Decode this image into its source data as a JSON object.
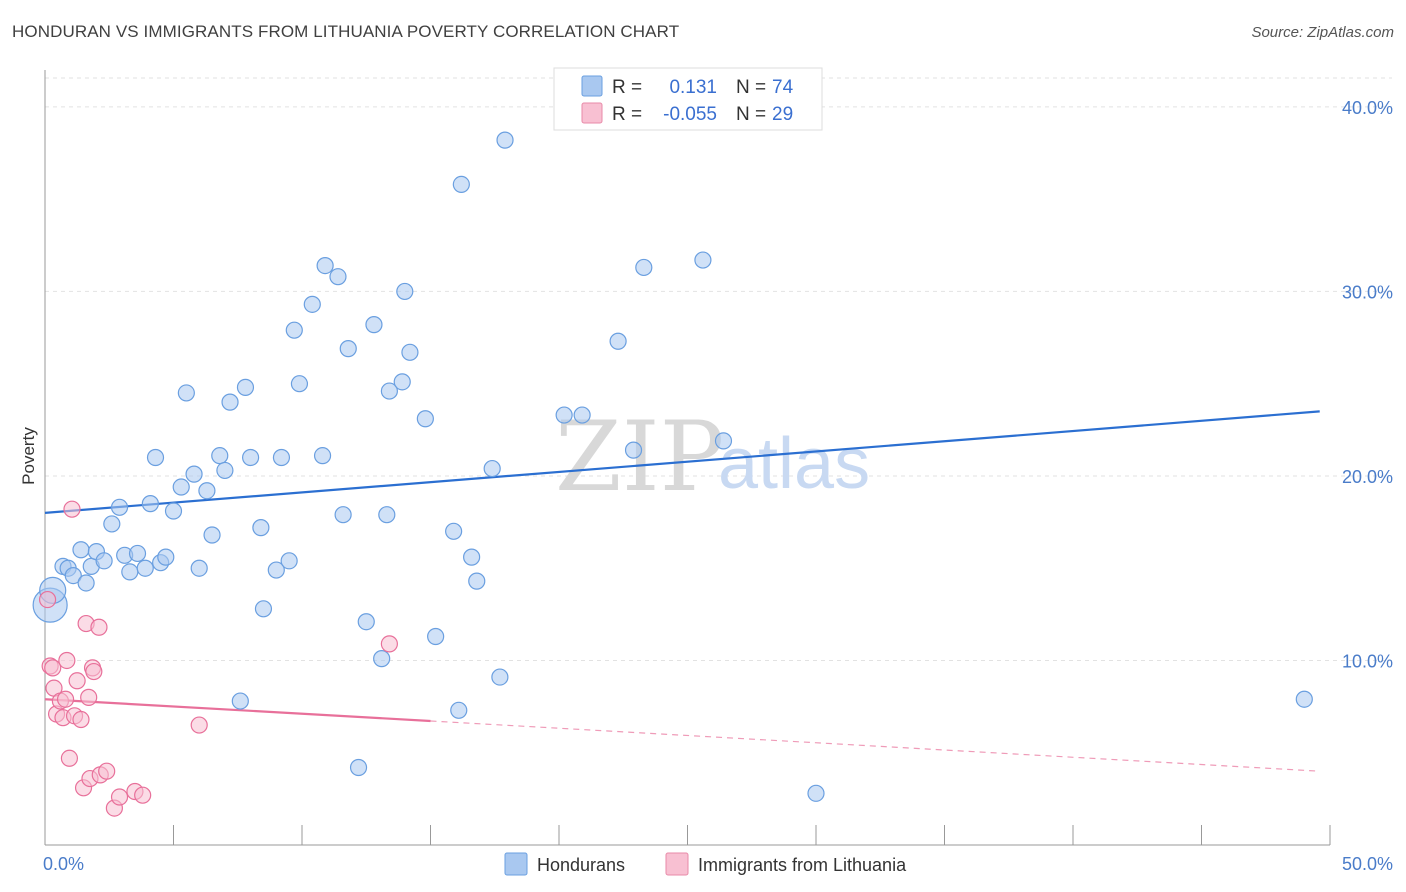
{
  "header": {
    "title": "HONDURAN VS IMMIGRANTS FROM LITHUANIA POVERTY CORRELATION CHART",
    "source": "Source: ZipAtlas.com"
  },
  "watermark": {
    "zip": "ZIP",
    "atlas": "atlas"
  },
  "legend_top": {
    "rows": [
      {
        "r_label": "R =",
        "r_value": "0.131",
        "n_label": "N =",
        "n_value": "74",
        "color": "#a9c8f0",
        "stroke": "#6a9fe0"
      },
      {
        "r_label": "R =",
        "r_value": "-0.055",
        "n_label": "N =",
        "n_value": "29",
        "color": "#f8c0d2",
        "stroke": "#e88aa8"
      }
    ]
  },
  "legend_bottom": {
    "items": [
      {
        "label": "Hondurans",
        "color": "#a9c8f0",
        "stroke": "#6a9fe0"
      },
      {
        "label": "Immigrants from Lithuania",
        "color": "#f8c0d2",
        "stroke": "#e88aa8"
      }
    ]
  },
  "chart_data": {
    "type": "scatter",
    "title": "HONDURAN VS IMMIGRANTS FROM LITHUANIA POVERTY CORRELATION CHART",
    "xlabel": "",
    "ylabel": "Poverty",
    "xlim": [
      0,
      50
    ],
    "ylim": [
      0,
      42
    ],
    "x_tick_labels": [
      "0.0%",
      "50.0%"
    ],
    "y_ticks": [
      10,
      20,
      30,
      40
    ],
    "y_tick_labels": [
      "10.0%",
      "20.0%",
      "30.0%",
      "40.0%"
    ],
    "grid": true,
    "series": [
      {
        "name": "Hondurans",
        "color": "#6a9fe0",
        "fill": "#a9c8f0",
        "r": 0.131,
        "n": 74,
        "trend": {
          "x0": 0,
          "y0": 18.0,
          "x1": 49.6,
          "y1": 23.5,
          "dashed_from": null
        },
        "points": [
          [
            0.2,
            13.0
          ],
          [
            0.3,
            13.8
          ],
          [
            0.7,
            15.1
          ],
          [
            0.9,
            15.0
          ],
          [
            1.1,
            14.6
          ],
          [
            1.4,
            16.0
          ],
          [
            1.6,
            14.2
          ],
          [
            1.8,
            15.1
          ],
          [
            2.0,
            15.9
          ],
          [
            2.3,
            15.4
          ],
          [
            2.6,
            17.4
          ],
          [
            2.9,
            18.3
          ],
          [
            3.1,
            15.7
          ],
          [
            3.3,
            14.8
          ],
          [
            3.6,
            15.8
          ],
          [
            3.9,
            15.0
          ],
          [
            4.1,
            18.5
          ],
          [
            4.3,
            21.0
          ],
          [
            4.5,
            15.3
          ],
          [
            4.7,
            15.6
          ],
          [
            5.0,
            18.1
          ],
          [
            5.3,
            19.4
          ],
          [
            5.5,
            24.5
          ],
          [
            5.8,
            20.1
          ],
          [
            6.0,
            15.0
          ],
          [
            6.3,
            19.2
          ],
          [
            6.5,
            16.8
          ],
          [
            6.8,
            21.1
          ],
          [
            7.0,
            20.3
          ],
          [
            7.2,
            24.0
          ],
          [
            7.6,
            7.8
          ],
          [
            7.8,
            24.8
          ],
          [
            8.0,
            21.0
          ],
          [
            8.4,
            17.2
          ],
          [
            8.5,
            12.8
          ],
          [
            9.0,
            14.9
          ],
          [
            9.2,
            21.0
          ],
          [
            9.5,
            15.4
          ],
          [
            9.7,
            27.9
          ],
          [
            9.9,
            25.0
          ],
          [
            10.4,
            29.3
          ],
          [
            10.8,
            21.1
          ],
          [
            10.9,
            31.4
          ],
          [
            11.4,
            30.8
          ],
          [
            11.6,
            17.9
          ],
          [
            11.8,
            26.9
          ],
          [
            12.2,
            4.2
          ],
          [
            12.5,
            12.1
          ],
          [
            12.8,
            28.2
          ],
          [
            13.1,
            10.1
          ],
          [
            13.3,
            17.9
          ],
          [
            13.4,
            24.6
          ],
          [
            13.9,
            25.1
          ],
          [
            14.0,
            30.0
          ],
          [
            14.2,
            26.7
          ],
          [
            14.8,
            23.1
          ],
          [
            15.2,
            11.3
          ],
          [
            15.9,
            17.0
          ],
          [
            16.1,
            7.3
          ],
          [
            16.2,
            35.8
          ],
          [
            16.6,
            15.6
          ],
          [
            16.8,
            14.3
          ],
          [
            17.4,
            20.4
          ],
          [
            17.7,
            9.1
          ],
          [
            17.9,
            38.2
          ],
          [
            20.2,
            23.3
          ],
          [
            20.9,
            23.3
          ],
          [
            22.3,
            27.3
          ],
          [
            22.9,
            21.4
          ],
          [
            23.3,
            31.3
          ],
          [
            25.6,
            31.7
          ],
          [
            26.4,
            21.9
          ],
          [
            30.0,
            2.8
          ],
          [
            49.0,
            7.9
          ]
        ]
      },
      {
        "name": "Immigrants from Lithuania",
        "color": "#e8709a",
        "fill": "#f8c0d2",
        "r": -0.055,
        "n": 29,
        "trend": {
          "x0": 0,
          "y0": 7.9,
          "x1": 49.6,
          "y1": 4.0,
          "dashed_from": 15.0
        },
        "points": [
          [
            0.1,
            13.3
          ],
          [
            0.2,
            9.7
          ],
          [
            0.3,
            9.6
          ],
          [
            0.35,
            8.5
          ],
          [
            0.45,
            7.1
          ],
          [
            0.6,
            7.8
          ],
          [
            0.7,
            6.9
          ],
          [
            0.8,
            7.9
          ],
          [
            0.85,
            10.0
          ],
          [
            0.95,
            4.7
          ],
          [
            1.05,
            18.2
          ],
          [
            1.15,
            7.0
          ],
          [
            1.25,
            8.9
          ],
          [
            1.4,
            6.8
          ],
          [
            1.5,
            3.1
          ],
          [
            1.6,
            12.0
          ],
          [
            1.7,
            8.0
          ],
          [
            1.75,
            3.6
          ],
          [
            1.85,
            9.6
          ],
          [
            1.9,
            9.4
          ],
          [
            2.1,
            11.8
          ],
          [
            2.15,
            3.8
          ],
          [
            2.4,
            4.0
          ],
          [
            2.7,
            2.0
          ],
          [
            2.9,
            2.6
          ],
          [
            3.5,
            2.9
          ],
          [
            3.8,
            2.7
          ],
          [
            6.0,
            6.5
          ],
          [
            13.4,
            10.9
          ]
        ]
      }
    ]
  }
}
